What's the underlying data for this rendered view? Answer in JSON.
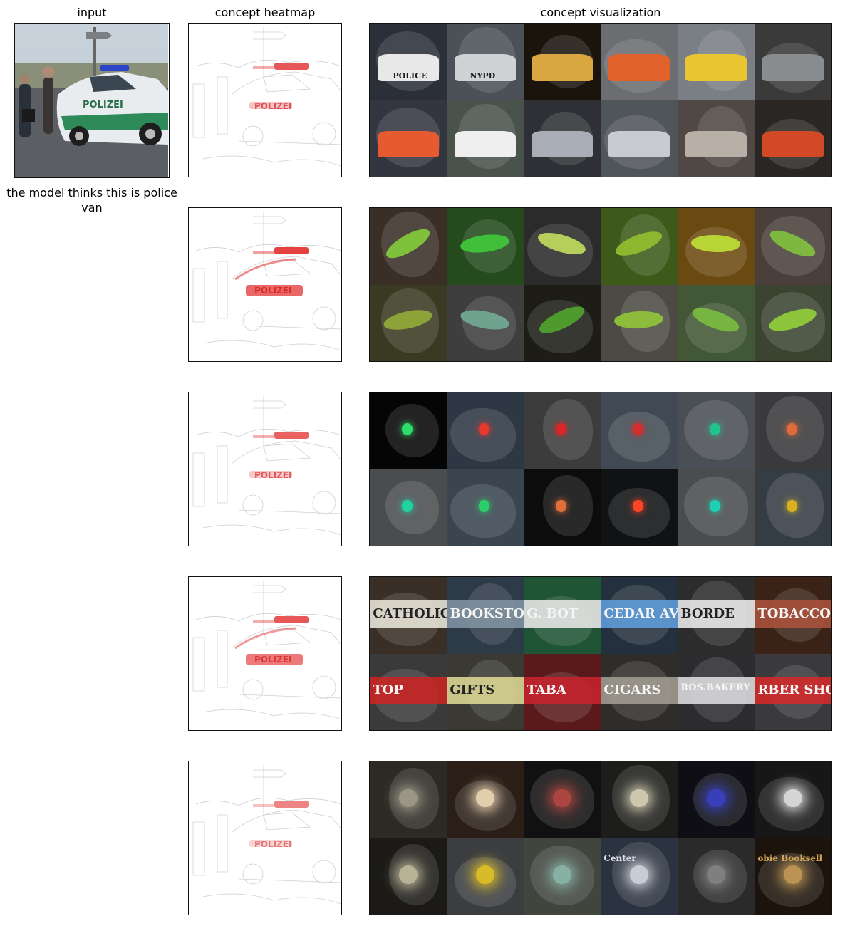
{
  "headers": {
    "input": "input",
    "heatmap": "concept heatmap",
    "visualization": "concept visualization"
  },
  "prediction_caption": "the model thinks this is police van",
  "input_image": {
    "car_text": "POLIZEI"
  },
  "heatmap_car_text": "POLIZEI",
  "concepts": [
    {
      "theme": "vehicles",
      "tiles": [
        {
          "bg": "#2b2f38",
          "accent": "#e8e8e8",
          "text": "POLICE"
        },
        {
          "bg": "#4b5157",
          "accent": "#d0d3d6",
          "text": "NYPD"
        },
        {
          "bg": "#1a140c",
          "accent": "#d9a640",
          "text": ""
        },
        {
          "bg": "#6b6d70",
          "accent": "#e0622a",
          "text": ""
        },
        {
          "bg": "#7a7f86",
          "accent": "#e8c531",
          "text": ""
        },
        {
          "bg": "#3b3a3a",
          "accent": "#8a8d90",
          "text": ""
        },
        {
          "bg": "#33363f",
          "accent": "#e65a30",
          "text": ""
        },
        {
          "bg": "#4a524c",
          "accent": "#efefef",
          "text": ""
        },
        {
          "bg": "#2e3035",
          "accent": "#a9aeb6",
          "text": ""
        },
        {
          "bg": "#505559",
          "accent": "#c8ccd1",
          "text": ""
        },
        {
          "bg": "#4f4845",
          "accent": "#b8b0a6",
          "text": ""
        },
        {
          "bg": "#2a2624",
          "accent": "#d14a25",
          "text": ""
        }
      ]
    },
    {
      "theme": "green snakes",
      "tiles": [
        {
          "bg": "#3a2f27",
          "accent": "#7fc13a",
          "text": ""
        },
        {
          "bg": "#244a1d",
          "accent": "#3fbf3a",
          "text": ""
        },
        {
          "bg": "#2b2b2b",
          "accent": "#b6cf5a",
          "text": ""
        },
        {
          "bg": "#3d5a1a",
          "accent": "#8bb82e",
          "text": ""
        },
        {
          "bg": "#6b4a12",
          "accent": "#b9d435",
          "text": ""
        },
        {
          "bg": "#4a3f3b",
          "accent": "#7fb840",
          "text": ""
        },
        {
          "bg": "#3a3a22",
          "accent": "#8da33a",
          "text": ""
        },
        {
          "bg": "#3e3e3e",
          "accent": "#6fa38f",
          "text": ""
        },
        {
          "bg": "#1d1d16",
          "accent": "#4f9a2c",
          "text": ""
        },
        {
          "bg": "#4c4a43",
          "accent": "#8dbb3b",
          "text": ""
        },
        {
          "bg": "#415735",
          "accent": "#76b540",
          "text": ""
        },
        {
          "bg": "#3b4431",
          "accent": "#8cc53c",
          "text": ""
        }
      ]
    },
    {
      "theme": "lights",
      "tiles": [
        {
          "bg": "#050505",
          "accent": "#2ddc6a",
          "text": ""
        },
        {
          "bg": "#2e3744",
          "accent": "#e8372c",
          "text": ""
        },
        {
          "bg": "#3c3c3c",
          "accent": "#d92727",
          "text": ""
        },
        {
          "bg": "#414a54",
          "accent": "#d62d2d",
          "text": ""
        },
        {
          "bg": "#4a4f55",
          "accent": "#1fc38b",
          "text": ""
        },
        {
          "bg": "#3a3a3c",
          "accent": "#e06b3a",
          "text": ""
        },
        {
          "bg": "#4a4d4f",
          "accent": "#1fd3a0",
          "text": ""
        },
        {
          "bg": "#3a4550",
          "accent": "#2bcf6a",
          "text": ""
        },
        {
          "bg": "#0c0c0d",
          "accent": "#e0703a",
          "text": ""
        },
        {
          "bg": "#101214",
          "accent": "#ff4424",
          "text": ""
        },
        {
          "bg": "#4b4c4d",
          "accent": "#1fd0b3",
          "text": ""
        },
        {
          "bg": "#343c44",
          "accent": "#d8b022",
          "text": ""
        }
      ]
    },
    {
      "theme": "signs",
      "tiles": [
        {
          "bg": "#3a2f26",
          "accent": "#e7e2d6",
          "text": "CATHOLIC"
        },
        {
          "bg": "#2d3a47",
          "accent": "#7f91a1",
          "text": "BOOKSTORE"
        },
        {
          "bg": "#1f5434",
          "accent": "#e6e6e6",
          "text": "G. BOT"
        },
        {
          "bg": "#24303d",
          "accent": "#5e9bd8",
          "text": "CEDAR AVE"
        },
        {
          "bg": "#2c2c2c",
          "accent": "#e8e8e8",
          "text": "BORDE"
        },
        {
          "bg": "#3a2316",
          "accent": "#a8523b",
          "text": "TOBACCO"
        },
        {
          "bg": "#3a3a3a",
          "accent": "#c62624",
          "text": "TOP"
        },
        {
          "bg": "#3a3a33",
          "accent": "#d9d592",
          "text": "GIFTS"
        },
        {
          "bg": "#5a1a1c",
          "accent": "#c4232d",
          "text": "TABA"
        },
        {
          "bg": "#2f2d29",
          "accent": "#9e9a8f",
          "text": "CIGARS"
        },
        {
          "bg": "#2c2c2f",
          "accent": "#d9d9dc",
          "text": "ROS.BAKERY"
        },
        {
          "bg": "#3a3a3c",
          "accent": "#d02a2a",
          "text": "RBER SHOP"
        }
      ]
    },
    {
      "theme": "night scenes",
      "tiles": [
        {
          "bg": "#2d2a24",
          "accent": "#a9a593",
          "text": ""
        },
        {
          "bg": "#2a1e17",
          "accent": "#ffe8c2",
          "text": ""
        },
        {
          "bg": "#111111",
          "accent": "#c24a44",
          "text": ""
        },
        {
          "bg": "#1d1d1b",
          "accent": "#e6e0c2",
          "text": ""
        },
        {
          "bg": "#0e0e14",
          "accent": "#3a44d0",
          "text": ""
        },
        {
          "bg": "#171717",
          "accent": "#f2f2f2",
          "text": ""
        },
        {
          "bg": "#1b1a16",
          "accent": "#cfc9a8",
          "text": ""
        },
        {
          "bg": "#3b3d40",
          "accent": "#f0cd21",
          "text": ""
        },
        {
          "bg": "#40453e",
          "accent": "#8fbfb1",
          "text": ""
        },
        {
          "bg": "#2b3340",
          "accent": "#dfe4ec",
          "text": "Center"
        },
        {
          "bg": "#2a2a2b",
          "accent": "#8a8a8a",
          "text": ""
        },
        {
          "bg": "#1c140c",
          "accent": "#d3a55a",
          "text": "obie Booksell"
        }
      ]
    }
  ]
}
